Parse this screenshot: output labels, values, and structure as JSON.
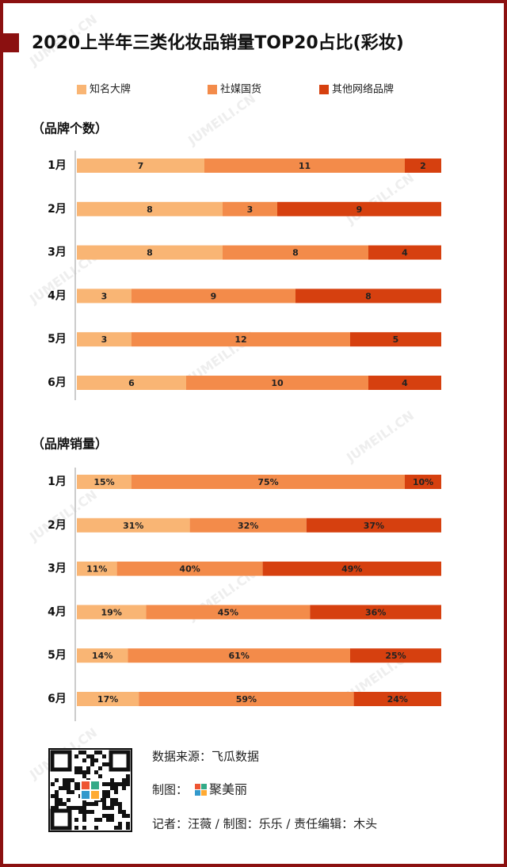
{
  "title": "2020上半年三类化妆品销量TOP20占比(彩妆)",
  "watermark": "JUMEILI.CN",
  "chart_data": [
    {
      "type": "stacked-bar",
      "subtitle": "（品牌个数）",
      "categories": [
        "1月",
        "2月",
        "3月",
        "4月",
        "5月",
        "6月"
      ],
      "xlim": [
        0,
        20
      ],
      "series": [
        {
          "name": "知名大牌",
          "color": "#f9b574",
          "values": [
            7,
            8,
            8,
            3,
            3,
            6
          ]
        },
        {
          "name": "社媒国货",
          "color": "#f38b4a",
          "values": [
            11,
            3,
            8,
            9,
            12,
            10
          ]
        },
        {
          "name": "其他网络品牌",
          "color": "#d6400f",
          "values": [
            2,
            9,
            4,
            8,
            5,
            4
          ]
        }
      ]
    },
    {
      "type": "stacked-bar",
      "subtitle": "（品牌销量）",
      "categories": [
        "1月",
        "2月",
        "3月",
        "4月",
        "5月",
        "6月"
      ],
      "xlim": [
        0,
        100
      ],
      "series": [
        {
          "color": "#f9b574",
          "values": [
            15,
            31,
            11,
            19,
            14,
            17
          ],
          "value_labels": [
            "15%",
            "31%",
            "11%",
            "19%",
            "14%",
            "17%"
          ]
        },
        {
          "color": "#f38b4a",
          "values": [
            75,
            32,
            40,
            45,
            61,
            59
          ],
          "value_labels": [
            "75%",
            "32%",
            "40%",
            "45%",
            "61%",
            "59%"
          ]
        },
        {
          "color": "#d6400f",
          "values": [
            10,
            37,
            49,
            36,
            25,
            24
          ],
          "value_labels": [
            "10%",
            "37%",
            "49%",
            "36%",
            "25%",
            "24%"
          ]
        }
      ]
    }
  ],
  "footer": {
    "source": "数据来源：飞瓜数据",
    "made_by": "制图：",
    "brand": "聚美丽",
    "credits": "记者：汪薇 / 制图：乐乐 / 责任编辑：木头"
  }
}
